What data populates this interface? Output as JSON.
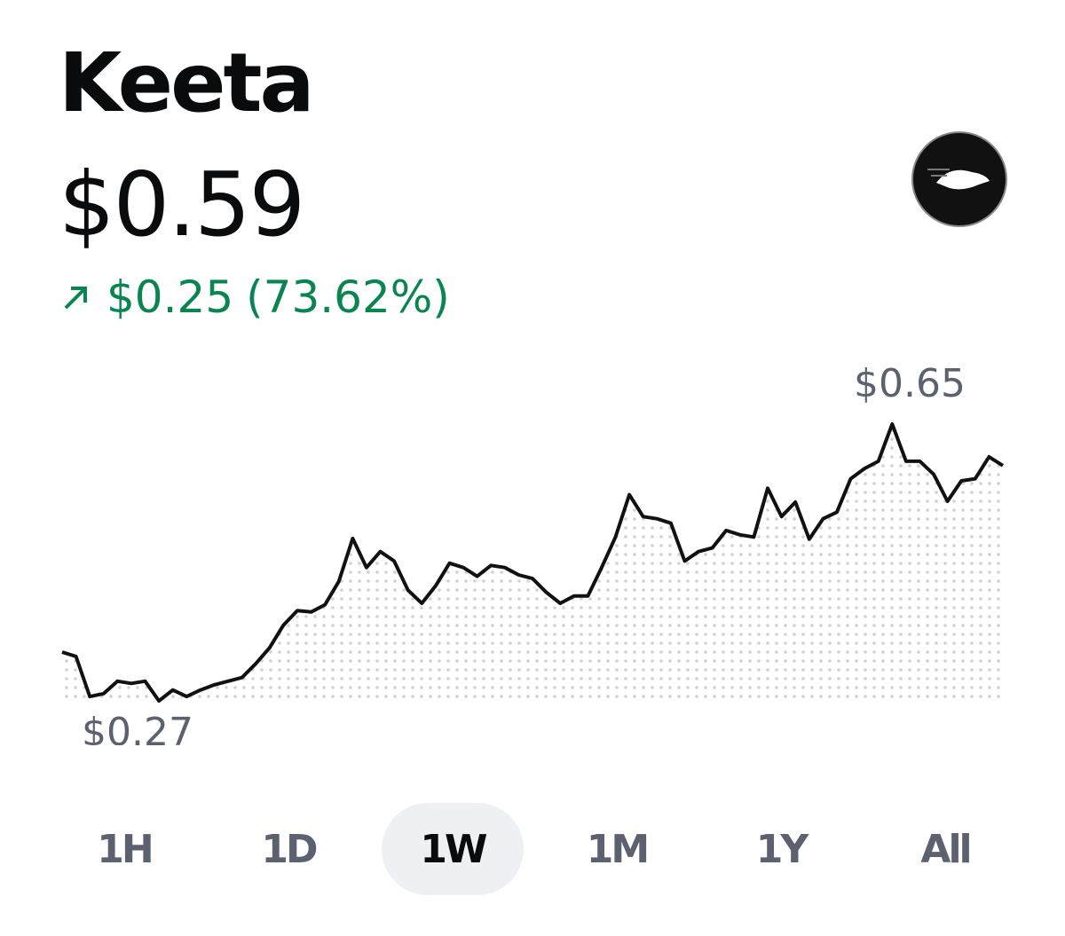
{
  "header": {
    "title": "Keeta",
    "price": "$0.59",
    "change": "$0.25",
    "change_percent": "(73.62%)"
  },
  "chart_data": {
    "type": "line",
    "color": "#111111",
    "values": [
      0.337,
      0.331,
      0.276,
      0.28,
      0.297,
      0.294,
      0.297,
      0.27,
      0.285,
      0.276,
      0.285,
      0.292,
      0.297,
      0.302,
      0.321,
      0.343,
      0.374,
      0.394,
      0.392,
      0.402,
      0.434,
      0.493,
      0.453,
      0.475,
      0.462,
      0.422,
      0.404,
      0.428,
      0.459,
      0.453,
      0.441,
      0.456,
      0.453,
      0.443,
      0.438,
      0.419,
      0.404,
      0.414,
      0.414,
      0.453,
      0.495,
      0.553,
      0.523,
      0.52,
      0.514,
      0.462,
      0.475,
      0.48,
      0.504,
      0.498,
      0.495,
      0.562,
      0.523,
      0.543,
      0.492,
      0.52,
      0.529,
      0.575,
      0.589,
      0.599,
      0.65,
      0.599,
      0.599,
      0.581,
      0.544,
      0.572,
      0.575,
      0.605,
      0.593
    ],
    "ylim": [
      0.27,
      0.65
    ],
    "high_label": "$0.65",
    "low_label": "$0.27"
  },
  "ranges": {
    "options": [
      "1H",
      "1D",
      "1W",
      "1M",
      "1Y",
      "All"
    ],
    "selected": "1W"
  }
}
